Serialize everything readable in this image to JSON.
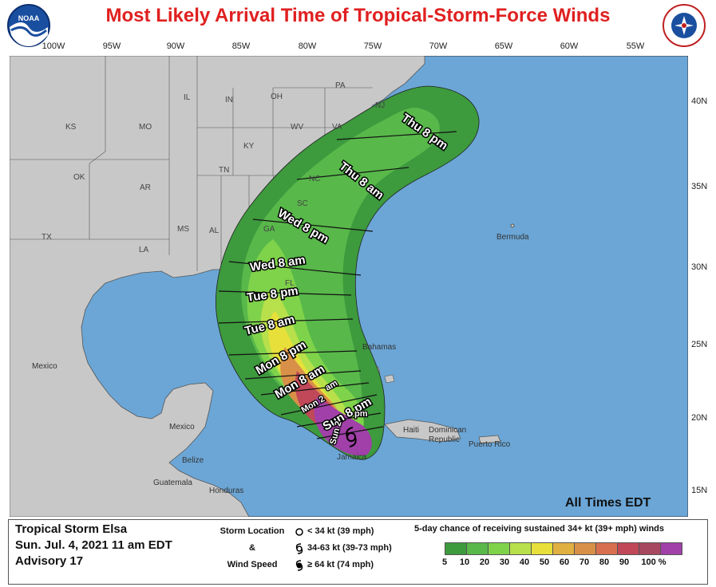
{
  "title": "Most Likely Arrival Time of Tropical-Storm-Force Winds",
  "logos": {
    "left": "noaa-logo",
    "right": "national-weather-service-logo"
  },
  "longitude_labels": [
    "100W",
    "95W",
    "90W",
    "85W",
    "80W",
    "75W",
    "70W",
    "65W",
    "60W",
    "55W"
  ],
  "latitude_labels": [
    "40N",
    "35N",
    "30N",
    "25N",
    "20N",
    "15N"
  ],
  "states": [
    "PA",
    "NJ",
    "IL",
    "IN",
    "OH",
    "KS",
    "MO",
    "WV",
    "VA",
    "KY",
    "OK",
    "TN",
    "NC",
    "AR",
    "SC",
    "TX",
    "MS",
    "AL",
    "GA",
    "LA",
    "FL"
  ],
  "places": [
    "Mexico",
    "Bermuda",
    "Bahamas",
    "Haiti",
    "Dominican",
    "Republic",
    "Puerto Rico",
    "Jamaica",
    "Mexico",
    "Belize",
    "Guatemala",
    "Honduras"
  ],
  "arrival_times": [
    "Thu 8 pm",
    "Thu 8 am",
    "Wed 8 pm",
    "Wed 8 am",
    "Tue 8 pm",
    "Tue 8 am",
    "Mon 8 pm",
    "Mon 8 am",
    "Mon 2 am",
    "Sun 8 pm",
    "Mon 2",
    "am",
    "Sun 2 pm",
    "Sun 2",
    "pm"
  ],
  "all_times": "All Times EDT",
  "storm": {
    "name": "Tropical Storm Elsa",
    "datetime": "Sun. Jul. 4, 2021   11 am EDT",
    "advisory": "Advisory 17"
  },
  "legend": {
    "key_title_1": "Storm Location",
    "key_title_2": "&",
    "key_title_3": "Wind Speed",
    "categories": [
      "< 34 kt (39 mph)",
      "34-63 kt (39-73 mph)",
      "≥ 64 kt (74 mph)"
    ],
    "chance_title": "5-day chance of receiving sustained 34+ kt (39+ mph) winds",
    "scale_colors": [
      "#3d9a3d",
      "#58b84a",
      "#7fd34a",
      "#b8e04a",
      "#e8e03a",
      "#e0b040",
      "#d89048",
      "#d87050",
      "#c04858",
      "#a84860",
      "#a040a8"
    ],
    "scale_labels": [
      "5",
      "10",
      "20",
      "30",
      "40",
      "50",
      "60",
      "70",
      "80",
      "90",
      "100 %"
    ]
  },
  "colors": {
    "ocean": "#6ba6d6",
    "land": "#c8c8c8",
    "title": "#e02020"
  }
}
